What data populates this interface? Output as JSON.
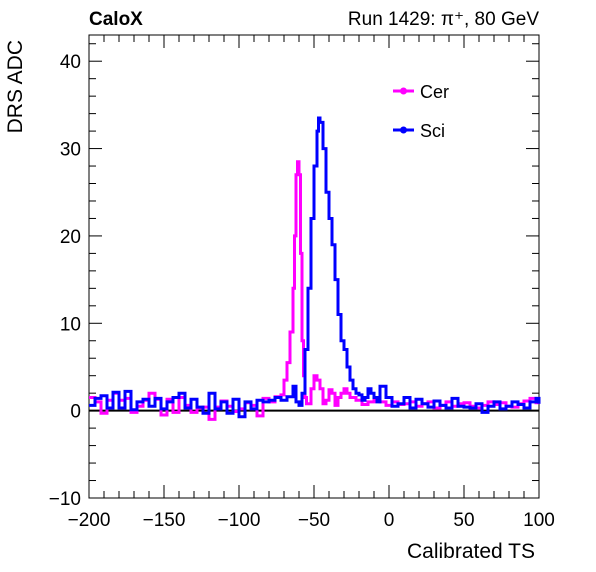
{
  "header": {
    "experiment": "CaloX",
    "run_info": "Run 1429:   π⁺, 80 GeV"
  },
  "chart_data": {
    "type": "line",
    "title": "",
    "xlabel": "Calibrated TS",
    "ylabel": "DRS ADC",
    "xlim": [
      -200,
      100
    ],
    "ylim": [
      -10,
      43
    ],
    "xticks": [
      -200,
      -150,
      -100,
      -50,
      0,
      50,
      100
    ],
    "xtick_labels": [
      "−200",
      "−150",
      "−100",
      "−50",
      "0",
      "50",
      "100"
    ],
    "yticks": [
      -10,
      0,
      10,
      20,
      30,
      40
    ],
    "ytick_labels": [
      "−10",
      "0",
      "10",
      "20",
      "30",
      "40"
    ],
    "grid": false,
    "legend_position": "top-right",
    "reference_line_y": 0,
    "series": [
      {
        "name": "Cer",
        "color": "#ff00ff",
        "x": [
          -200,
          -196,
          -192,
          -188,
          -184,
          -180,
          -176,
          -172,
          -168,
          -164,
          -160,
          -156,
          -152,
          -148,
          -144,
          -140,
          -136,
          -132,
          -128,
          -124,
          -120,
          -116,
          -112,
          -108,
          -104,
          -100,
          -96,
          -92,
          -88,
          -84,
          -80,
          -76,
          -72,
          -70,
          -68,
          -66,
          -64,
          -63,
          -62,
          -61,
          -60,
          -59,
          -58,
          -57,
          -56,
          -55,
          -54,
          -52,
          -50,
          -48,
          -46,
          -44,
          -42,
          -40,
          -38,
          -36,
          -34,
          -32,
          -30,
          -28,
          -26,
          -22,
          -18,
          -14,
          -10,
          -6,
          -2,
          2,
          6,
          10,
          14,
          18,
          22,
          26,
          30,
          34,
          38,
          42,
          46,
          50,
          54,
          58,
          62,
          66,
          70,
          74,
          78,
          82,
          86,
          90,
          94,
          98,
          100
        ],
        "y": [
          1.5,
          1.0,
          -0.3,
          1.2,
          2.0,
          1.2,
          1.4,
          -0.2,
          0.5,
          1.2,
          2.0,
          1.3,
          -0.5,
          1.3,
          -0.2,
          1.5,
          0.6,
          -0.2,
          0.3,
          0.4,
          -1.0,
          0.4,
          1.1,
          0.5,
          -0.1,
          0.2,
          0.9,
          0.6,
          -0.6,
          1.4,
          1.0,
          1.6,
          1.8,
          3.5,
          5.5,
          9.0,
          14.0,
          20.0,
          27.0,
          28.5,
          27.0,
          18.0,
          8.0,
          4.0,
          1.5,
          0.8,
          0.8,
          2.5,
          4.0,
          3.5,
          2.5,
          0.8,
          1.2,
          2.4,
          2.0,
          0.6,
          1.5,
          2.0,
          2.5,
          2.0,
          1.5,
          1.2,
          0.7,
          1.0,
          1.3,
          1.0,
          0.6,
          1.0,
          0.7,
          0.8,
          1.0,
          0.5,
          0.8,
          1.0,
          0.3,
          0.6,
          1.0,
          0.5,
          0.8,
          0.9,
          0.5,
          0.3,
          0.6,
          1.0,
          0.7,
          0.9,
          0.5,
          0.4,
          0.8,
          1.1,
          1.4,
          0.9,
          0.8
        ]
      },
      {
        "name": "Sci",
        "color": "#0000ff",
        "x": [
          -200,
          -196,
          -192,
          -188,
          -184,
          -180,
          -176,
          -172,
          -168,
          -164,
          -160,
          -156,
          -152,
          -148,
          -144,
          -140,
          -136,
          -132,
          -128,
          -124,
          -120,
          -116,
          -112,
          -108,
          -104,
          -100,
          -96,
          -92,
          -88,
          -84,
          -80,
          -76,
          -72,
          -68,
          -64,
          -62,
          -60,
          -58,
          -56,
          -54,
          -52,
          -50,
          -48,
          -47,
          -46,
          -44,
          -42,
          -40,
          -38,
          -36,
          -34,
          -32,
          -30,
          -28,
          -26,
          -24,
          -22,
          -20,
          -18,
          -16,
          -14,
          -12,
          -10,
          -8,
          -6,
          -2,
          2,
          6,
          10,
          14,
          18,
          22,
          26,
          30,
          34,
          38,
          42,
          46,
          50,
          54,
          58,
          62,
          66,
          70,
          74,
          78,
          82,
          86,
          90,
          94,
          98,
          100
        ],
        "y": [
          0.6,
          1.4,
          1.7,
          0.3,
          2.1,
          0.3,
          2.2,
          0.1,
          1.0,
          1.3,
          0.5,
          1.4,
          0.2,
          1.0,
          1.5,
          2.0,
          0.3,
          1.3,
          0.4,
          -0.3,
          2.0,
          0.2,
          1.0,
          -0.3,
          1.3,
          -0.7,
          1.0,
          0.2,
          1.2,
          1.0,
          1.2,
          1.5,
          1.2,
          1.6,
          2.8,
          1.0,
          0.6,
          2.0,
          7.0,
          14.0,
          22.0,
          28.0,
          32.0,
          33.5,
          33.0,
          30.0,
          25.0,
          22.0,
          19.0,
          15.0,
          11.0,
          8.0,
          7.0,
          5.0,
          3.5,
          2.5,
          2.0,
          1.8,
          1.2,
          1.5,
          2.5,
          2.0,
          1.5,
          1.0,
          2.8,
          1.5,
          0.5,
          0.8,
          1.5,
          0.3,
          1.3,
          0.8,
          0.4,
          1.1,
          0.6,
          0.3,
          1.4,
          0.5,
          0.4,
          0.3,
          0.8,
          -0.2,
          0.5,
          1.0,
          0.2,
          0.5,
          1.0,
          0.7,
          0.3,
          1.0,
          1.4,
          0.8
        ]
      }
    ]
  }
}
